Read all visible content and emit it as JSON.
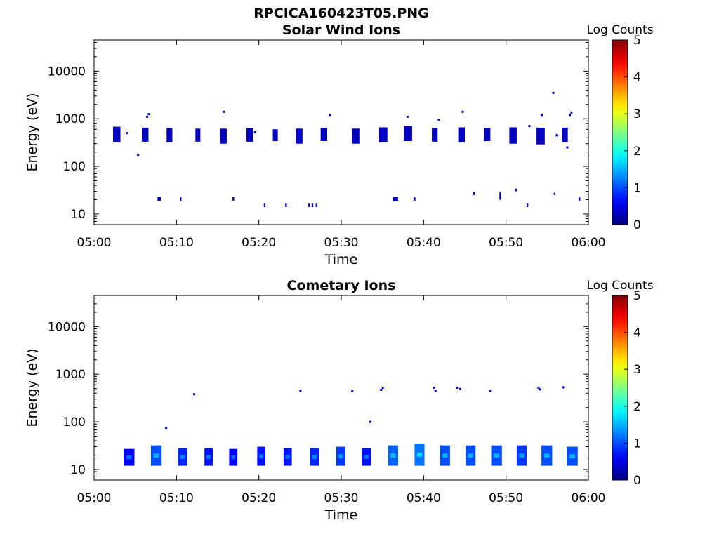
{
  "figure_title": "RPCICA160423T05.PNG",
  "chart_data": [
    {
      "type": "heatmap",
      "title": "Solar Wind Ions",
      "xlabel": "Time",
      "ylabel": "Energy (eV)",
      "x_ticks": [
        "05:00",
        "05:10",
        "05:20",
        "05:30",
        "05:40",
        "05:50",
        "06:00"
      ],
      "xlim_minutes": [
        0,
        60
      ],
      "y_scale": "log",
      "ylim": [
        6,
        45000
      ],
      "y_ticks": [
        10,
        100,
        1000,
        10000
      ],
      "y_tick_labels": [
        "10",
        "100",
        "1000",
        "10000"
      ],
      "colorbar": {
        "title": "Log Counts",
        "range": [
          0,
          5
        ],
        "ticks": [
          "0",
          "1",
          "2",
          "3",
          "4",
          "5"
        ],
        "colormap": "jet"
      },
      "blocks": [
        {
          "t": [
            2.3,
            3.2
          ],
          "e": [
            320,
            680
          ],
          "v": 0.3
        },
        {
          "t": [
            5.8,
            6.6
          ],
          "e": [
            330,
            650
          ],
          "v": 0.3
        },
        {
          "t": [
            8.8,
            9.5
          ],
          "e": [
            320,
            640
          ],
          "v": 0.3
        },
        {
          "t": [
            12.3,
            12.9
          ],
          "e": [
            330,
            620
          ],
          "v": 0.3
        },
        {
          "t": [
            15.3,
            16.1
          ],
          "e": [
            300,
            620
          ],
          "v": 0.3
        },
        {
          "t": [
            18.5,
            19.3
          ],
          "e": [
            330,
            640
          ],
          "v": 0.3
        },
        {
          "t": [
            21.7,
            22.3
          ],
          "e": [
            340,
            600
          ],
          "v": 0.3
        },
        {
          "t": [
            24.5,
            25.3
          ],
          "e": [
            300,
            620
          ],
          "v": 0.35
        },
        {
          "t": [
            27.5,
            28.3
          ],
          "e": [
            340,
            640
          ],
          "v": 0.3
        },
        {
          "t": [
            31.3,
            32.2
          ],
          "e": [
            300,
            620
          ],
          "v": 0.3
        },
        {
          "t": [
            34.6,
            35.6
          ],
          "e": [
            320,
            660
          ],
          "v": 0.35
        },
        {
          "t": [
            37.6,
            38.6
          ],
          "e": [
            340,
            700
          ],
          "v": 0.3
        },
        {
          "t": [
            41.0,
            41.7
          ],
          "e": [
            330,
            640
          ],
          "v": 0.3
        },
        {
          "t": [
            44.2,
            45.0
          ],
          "e": [
            320,
            660
          ],
          "v": 0.3
        },
        {
          "t": [
            47.3,
            48.1
          ],
          "e": [
            340,
            640
          ],
          "v": 0.3
        },
        {
          "t": [
            50.4,
            51.3
          ],
          "e": [
            300,
            660
          ],
          "v": 0.3
        },
        {
          "t": [
            53.7,
            54.7
          ],
          "e": [
            290,
            650
          ],
          "v": 0.3
        },
        {
          "t": [
            56.8,
            57.5
          ],
          "e": [
            320,
            650
          ],
          "v": 0.3
        },
        {
          "t": [
            7.7,
            8.1
          ],
          "e": [
            19,
            23
          ],
          "v": 0.3
        },
        {
          "t": [
            10.4,
            10.6
          ],
          "e": [
            19,
            23
          ],
          "v": 0.3
        },
        {
          "t": [
            16.8,
            17.0
          ],
          "e": [
            19,
            23
          ],
          "v": 0.3
        },
        {
          "t": [
            20.6,
            20.8
          ],
          "e": [
            14,
            17
          ],
          "v": 0.3
        },
        {
          "t": [
            23.2,
            23.4
          ],
          "e": [
            14,
            17
          ],
          "v": 0.3
        },
        {
          "t": [
            26.0,
            26.2
          ],
          "e": [
            14,
            17
          ],
          "v": 0.3
        },
        {
          "t": [
            26.4,
            26.6
          ],
          "e": [
            14,
            17
          ],
          "v": 0.3
        },
        {
          "t": [
            26.9,
            27.1
          ],
          "e": [
            14,
            17
          ],
          "v": 0.3
        },
        {
          "t": [
            36.3,
            36.9
          ],
          "e": [
            19,
            23
          ],
          "v": 0.3
        },
        {
          "t": [
            38.8,
            39.0
          ],
          "e": [
            19,
            23
          ],
          "v": 0.3
        },
        {
          "t": [
            46.0,
            46.2
          ],
          "e": [
            25,
            29
          ],
          "v": 0.3
        },
        {
          "t": [
            49.2,
            49.4
          ],
          "e": [
            20,
            29
          ],
          "v": 0.3
        },
        {
          "t": [
            51.1,
            51.3
          ],
          "e": [
            30,
            34
          ],
          "v": 0.3
        },
        {
          "t": [
            52.5,
            52.7
          ],
          "e": [
            14,
            17
          ],
          "v": 0.3
        },
        {
          "t": [
            55.8,
            56.0
          ],
          "e": [
            25,
            28
          ],
          "v": 0.3
        },
        {
          "t": [
            58.8,
            59.0
          ],
          "e": [
            19,
            23
          ],
          "v": 0.3
        }
      ],
      "points": [
        {
          "t": 5.3,
          "e": 175,
          "v": 0.3
        },
        {
          "t": 6.4,
          "e": 1100,
          "v": 0.3
        },
        {
          "t": 6.6,
          "e": 1250,
          "v": 0.3
        },
        {
          "t": 15.7,
          "e": 1400,
          "v": 0.3
        },
        {
          "t": 28.6,
          "e": 1200,
          "v": 0.3
        },
        {
          "t": 38.0,
          "e": 1100,
          "v": 0.3
        },
        {
          "t": 41.8,
          "e": 950,
          "v": 0.3
        },
        {
          "t": 44.7,
          "e": 1400,
          "v": 0.3
        },
        {
          "t": 54.3,
          "e": 1200,
          "v": 0.3
        },
        {
          "t": 55.7,
          "e": 3500,
          "v": 0.3
        },
        {
          "t": 57.9,
          "e": 1350,
          "v": 0.3
        },
        {
          "t": 57.7,
          "e": 1200,
          "v": 0.3
        },
        {
          "t": 4.0,
          "e": 500,
          "v": 0.3
        },
        {
          "t": 19.5,
          "e": 520,
          "v": 0.3
        },
        {
          "t": 52.8,
          "e": 700,
          "v": 0.3
        },
        {
          "t": 56.1,
          "e": 450,
          "v": 0.3
        },
        {
          "t": 57.4,
          "e": 250,
          "v": 0.3
        }
      ]
    },
    {
      "type": "heatmap",
      "title": "Cometary Ions",
      "xlabel": "Time",
      "ylabel": "Energy (eV)",
      "x_ticks": [
        "05:00",
        "05:10",
        "05:20",
        "05:30",
        "05:40",
        "05:50",
        "06:00"
      ],
      "xlim_minutes": [
        0,
        60
      ],
      "y_scale": "log",
      "ylim": [
        6,
        45000
      ],
      "y_ticks": [
        10,
        100,
        1000,
        10000
      ],
      "y_tick_labels": [
        "10",
        "100",
        "1000",
        "10000"
      ],
      "colorbar": {
        "title": "Log Counts",
        "range": [
          0,
          5
        ],
        "ticks": [
          "0",
          "1",
          "2",
          "3",
          "4",
          "5"
        ],
        "colormap": "jet"
      },
      "blocks": [
        {
          "t": [
            3.6,
            4.9
          ],
          "e": [
            12,
            27
          ],
          "v": 0.6
        },
        {
          "t": [
            6.9,
            8.2
          ],
          "e": [
            12,
            32
          ],
          "v": 1.0
        },
        {
          "t": [
            10.2,
            11.3
          ],
          "e": [
            12,
            28
          ],
          "v": 0.8
        },
        {
          "t": [
            13.4,
            14.4
          ],
          "e": [
            12,
            28
          ],
          "v": 0.7
        },
        {
          "t": [
            16.4,
            17.4
          ],
          "e": [
            12,
            27
          ],
          "v": 0.6
        },
        {
          "t": [
            19.8,
            20.8
          ],
          "e": [
            12,
            30
          ],
          "v": 0.7
        },
        {
          "t": [
            23.0,
            24.0
          ],
          "e": [
            12,
            28
          ],
          "v": 0.7
        },
        {
          "t": [
            26.2,
            27.3
          ],
          "e": [
            12,
            28
          ],
          "v": 0.8
        },
        {
          "t": [
            29.4,
            30.5
          ],
          "e": [
            12,
            30
          ],
          "v": 0.9
        },
        {
          "t": [
            32.5,
            33.6
          ],
          "e": [
            12,
            28
          ],
          "v": 0.7
        },
        {
          "t": [
            35.7,
            36.9
          ],
          "e": [
            12,
            32
          ],
          "v": 1.1
        },
        {
          "t": [
            38.9,
            40.1
          ],
          "e": [
            12,
            35
          ],
          "v": 1.2
        },
        {
          "t": [
            42.0,
            43.2
          ],
          "e": [
            12,
            32
          ],
          "v": 1.0
        },
        {
          "t": [
            45.1,
            46.3
          ],
          "e": [
            12,
            32
          ],
          "v": 1.0
        },
        {
          "t": [
            48.2,
            49.5
          ],
          "e": [
            12,
            32
          ],
          "v": 1.0
        },
        {
          "t": [
            51.3,
            52.5
          ],
          "e": [
            12,
            32
          ],
          "v": 0.9
        },
        {
          "t": [
            54.3,
            55.6
          ],
          "e": [
            12,
            32
          ],
          "v": 1.0
        },
        {
          "t": [
            57.4,
            58.7
          ],
          "e": [
            12,
            30
          ],
          "v": 1.0
        }
      ],
      "points": [
        {
          "t": 8.7,
          "e": 75,
          "v": 0.3
        },
        {
          "t": 12.1,
          "e": 380,
          "v": 0.3
        },
        {
          "t": 25.0,
          "e": 440,
          "v": 0.3
        },
        {
          "t": 31.3,
          "e": 440,
          "v": 0.3
        },
        {
          "t": 33.5,
          "e": 100,
          "v": 0.3
        },
        {
          "t": 34.8,
          "e": 470,
          "v": 0.3
        },
        {
          "t": 35.0,
          "e": 520,
          "v": 0.3
        },
        {
          "t": 41.2,
          "e": 520,
          "v": 0.3
        },
        {
          "t": 41.4,
          "e": 450,
          "v": 0.3
        },
        {
          "t": 44.0,
          "e": 520,
          "v": 0.3
        },
        {
          "t": 44.4,
          "e": 490,
          "v": 0.3
        },
        {
          "t": 48.0,
          "e": 450,
          "v": 0.3
        },
        {
          "t": 53.9,
          "e": 520,
          "v": 0.3
        },
        {
          "t": 54.1,
          "e": 480,
          "v": 0.3
        },
        {
          "t": 56.9,
          "e": 530,
          "v": 0.3
        }
      ]
    }
  ]
}
